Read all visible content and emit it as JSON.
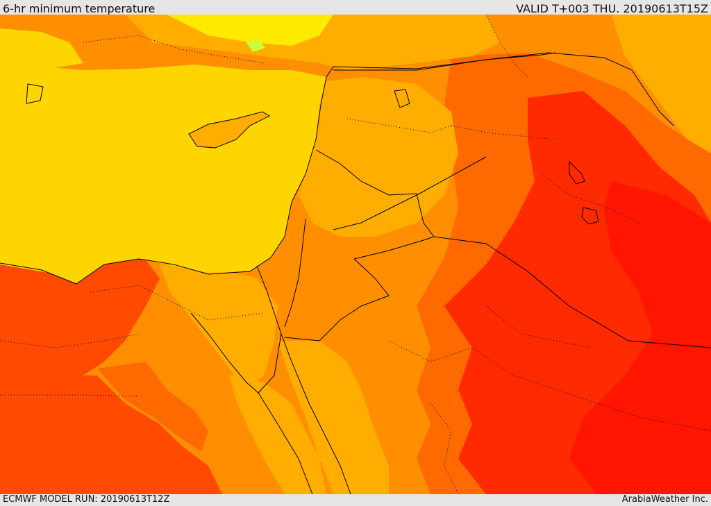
{
  "header": {
    "title": "6-hr minimum temperature",
    "valid": "VALID T+003 THU. 20190613T15Z"
  },
  "footer": {
    "model_run": "ECMWF MODEL RUN: 20190613T12Z",
    "credit": "ArabiaWeather Inc."
  },
  "map": {
    "region": "Eastern Mediterranean and Middle East",
    "colors": {
      "yellow": "#ffd500",
      "yellow_bright": "#ffeb00",
      "orange_light": "#ffae00",
      "orange": "#ff8f00",
      "orange_dark": "#ff6a00",
      "red_orange": "#ff4a00",
      "red": "#ff2a00",
      "red_deep": "#ff1500",
      "green_hint": "#c8ff3a",
      "border_line": "#000000"
    }
  }
}
